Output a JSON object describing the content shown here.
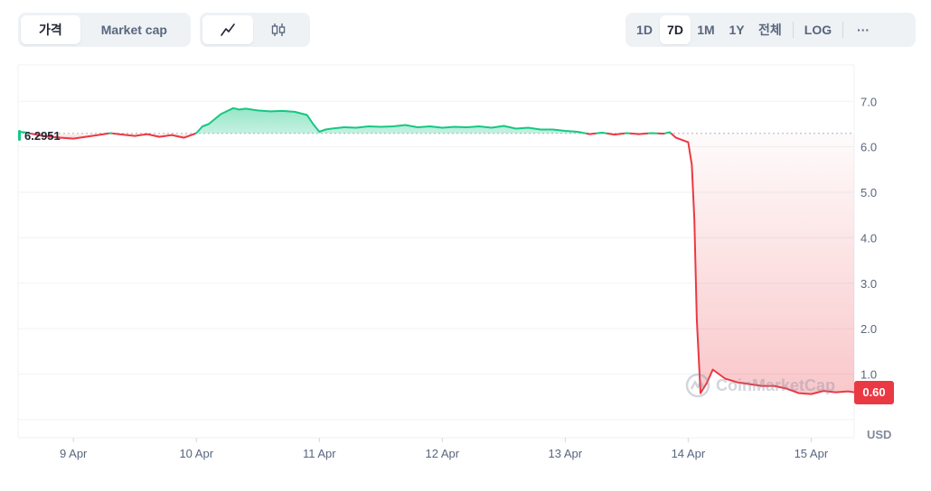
{
  "tabs": {
    "type": [
      {
        "label": "가격",
        "active": true
      },
      {
        "label": "Market cap",
        "active": false
      }
    ],
    "style": [
      {
        "icon": "line-chart-icon",
        "active": true
      },
      {
        "icon": "candlestick-icon",
        "active": false
      }
    ],
    "range": [
      {
        "label": "1D",
        "active": false
      },
      {
        "label": "7D",
        "active": true
      },
      {
        "label": "1M",
        "active": false
      },
      {
        "label": "1Y",
        "active": false
      },
      {
        "label": "전체",
        "active": false
      }
    ],
    "log_label": "LOG",
    "more_label": "···"
  },
  "watermark": "CoinMarketCap",
  "currency": "USD",
  "colors": {
    "up": "#16c784",
    "down": "#ea3943",
    "grid": "#eff2f5"
  },
  "chart_data": {
    "type": "area",
    "reference_price_label": "6.2951",
    "reference_price": 6.2951,
    "current_price_label": "0.60",
    "current_price": 0.6,
    "ylim": [
      -0.4,
      7.8
    ],
    "y_ticks": [
      "1.0",
      "2.0",
      "3.0",
      "4.0",
      "5.0",
      "6.0",
      "7.0"
    ],
    "y_tick_values": [
      1,
      2,
      3,
      4,
      5,
      6,
      7
    ],
    "x_ticks": [
      "9 Apr",
      "10 Apr",
      "11 Apr",
      "12 Apr",
      "13 Apr",
      "14 Apr",
      "15 Apr"
    ],
    "xlim": [
      8.55,
      15.35
    ],
    "series": [
      {
        "x": [
          8.55,
          8.6,
          8.75,
          8.9,
          9.0,
          9.1,
          9.2,
          9.3,
          9.4,
          9.5,
          9.6,
          9.7,
          9.8,
          9.9,
          10.0,
          10.05,
          10.1,
          10.2,
          10.3,
          10.35,
          10.4,
          10.5,
          10.6,
          10.7,
          10.8,
          10.9,
          10.95,
          11.0,
          11.05,
          11.1,
          11.2,
          11.3,
          11.4,
          11.5,
          11.6,
          11.7,
          11.8,
          11.9,
          12.0,
          12.1,
          12.2,
          12.3,
          12.4,
          12.5,
          12.6,
          12.7,
          12.8,
          12.9,
          13.0,
          13.1,
          13.2,
          13.3,
          13.4,
          13.5,
          13.6,
          13.7,
          13.8,
          13.85,
          13.9,
          13.95,
          14.0,
          14.03,
          14.05,
          14.07,
          14.1,
          14.15,
          14.2,
          14.3,
          14.4,
          14.5,
          14.6,
          14.7,
          14.8,
          14.9,
          15.0,
          15.1,
          15.2,
          15.3,
          15.35
        ],
        "values": [
          6.33,
          6.32,
          6.24,
          6.2,
          6.18,
          6.22,
          6.26,
          6.3,
          6.27,
          6.24,
          6.28,
          6.22,
          6.26,
          6.2,
          6.3,
          6.45,
          6.5,
          6.72,
          6.85,
          6.82,
          6.84,
          6.8,
          6.78,
          6.79,
          6.77,
          6.7,
          6.5,
          6.33,
          6.38,
          6.4,
          6.43,
          6.42,
          6.45,
          6.44,
          6.45,
          6.48,
          6.43,
          6.45,
          6.42,
          6.44,
          6.43,
          6.45,
          6.42,
          6.46,
          6.4,
          6.42,
          6.38,
          6.38,
          6.35,
          6.33,
          6.28,
          6.31,
          6.27,
          6.3,
          6.28,
          6.3,
          6.29,
          6.32,
          6.2,
          6.15,
          6.1,
          5.6,
          4.4,
          2.2,
          0.58,
          0.8,
          1.1,
          0.9,
          0.82,
          0.78,
          0.74,
          0.74,
          0.68,
          0.58,
          0.56,
          0.63,
          0.6,
          0.62,
          0.6
        ]
      }
    ]
  }
}
